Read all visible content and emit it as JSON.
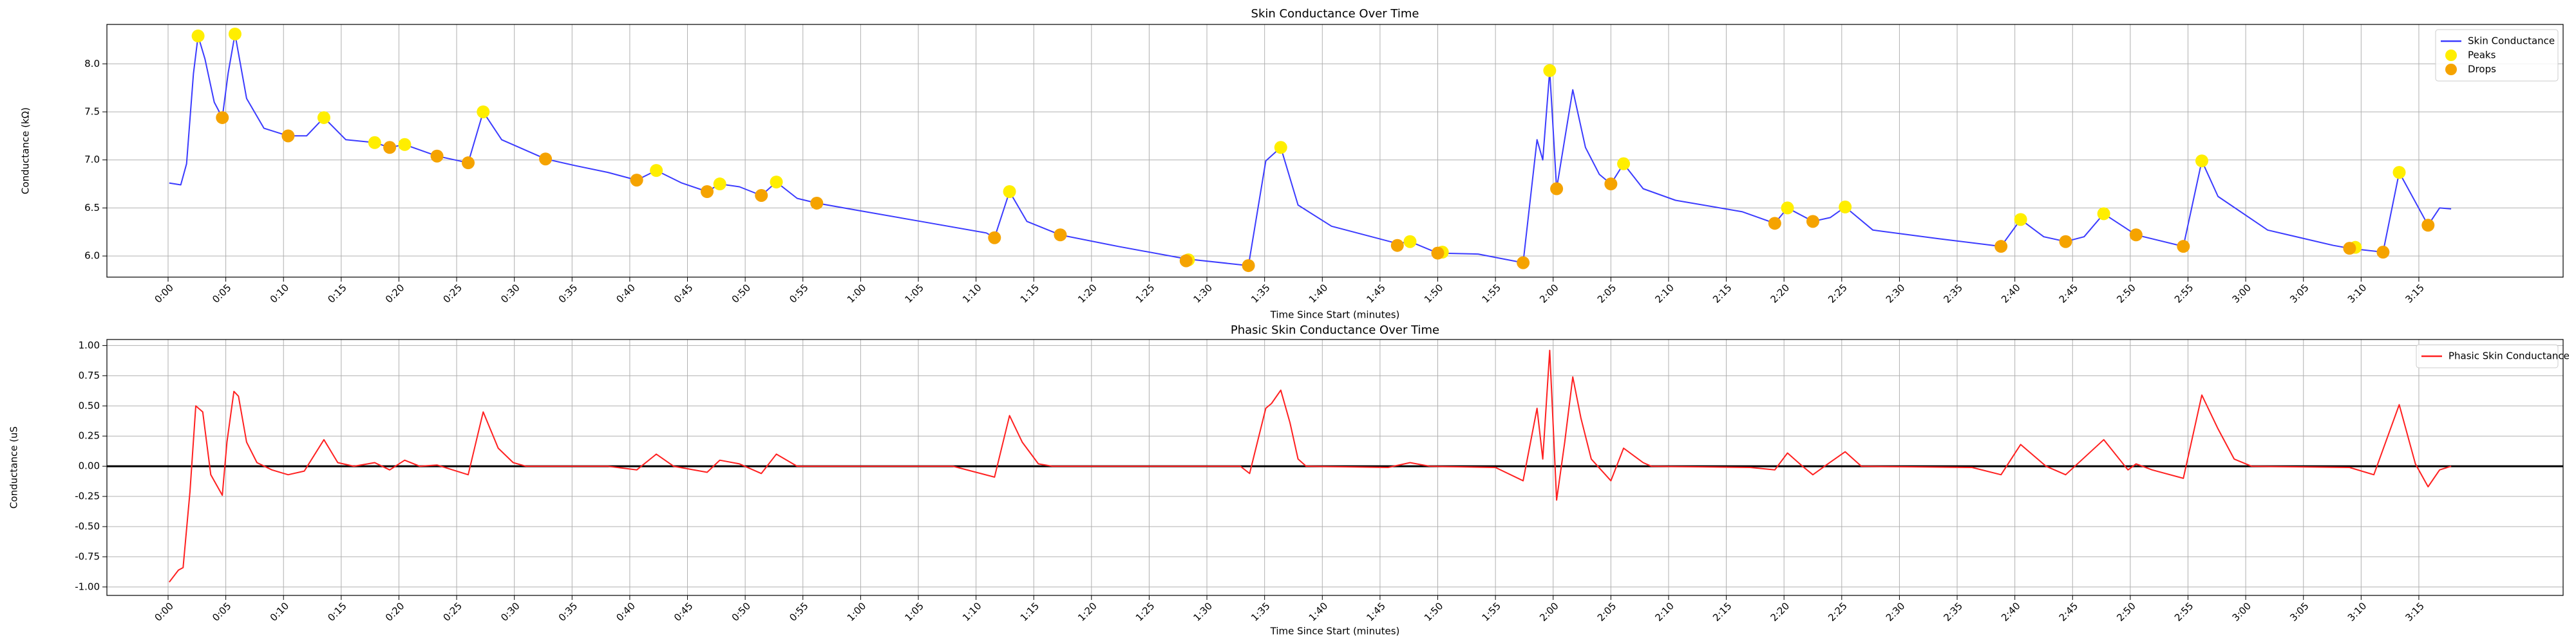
{
  "chart_data": [
    {
      "type": "line",
      "title": "Skin Conductance Over Time",
      "xlabel": "Time Since Start (minutes)",
      "ylabel": "Conductance (kΩ)",
      "xlim": [
        -5.3,
        207.5
      ],
      "ylim": [
        5.78,
        8.41
      ],
      "grid": true,
      "legend": "upper right",
      "xticks": [
        {
          "value": 0,
          "label": "0:00"
        },
        {
          "value": 5,
          "label": "0:05"
        },
        {
          "value": 10,
          "label": "0:10"
        },
        {
          "value": 15,
          "label": "0:15"
        },
        {
          "value": 20,
          "label": "0:20"
        },
        {
          "value": 25,
          "label": "0:25"
        },
        {
          "value": 30,
          "label": "0:30"
        },
        {
          "value": 35,
          "label": "0:35"
        },
        {
          "value": 40,
          "label": "0:40"
        },
        {
          "value": 45,
          "label": "0:45"
        },
        {
          "value": 50,
          "label": "0:50"
        },
        {
          "value": 55,
          "label": "0:55"
        },
        {
          "value": 60,
          "label": "1:00"
        },
        {
          "value": 65,
          "label": "1:05"
        },
        {
          "value": 70,
          "label": "1:10"
        },
        {
          "value": 75,
          "label": "1:15"
        },
        {
          "value": 80,
          "label": "1:20"
        },
        {
          "value": 85,
          "label": "1:25"
        },
        {
          "value": 90,
          "label": "1:30"
        },
        {
          "value": 95,
          "label": "1:35"
        },
        {
          "value": 100,
          "label": "1:40"
        },
        {
          "value": 105,
          "label": "1:45"
        },
        {
          "value": 110,
          "label": "1:50"
        },
        {
          "value": 115,
          "label": "1:55"
        },
        {
          "value": 120,
          "label": "2:00"
        },
        {
          "value": 125,
          "label": "2:05"
        },
        {
          "value": 130,
          "label": "2:10"
        },
        {
          "value": 135,
          "label": "2:15"
        },
        {
          "value": 140,
          "label": "2:20"
        },
        {
          "value": 145,
          "label": "2:25"
        },
        {
          "value": 150,
          "label": "2:30"
        },
        {
          "value": 155,
          "label": "2:35"
        },
        {
          "value": 160,
          "label": "2:40"
        },
        {
          "value": 165,
          "label": "2:45"
        },
        {
          "value": 170,
          "label": "2:50"
        },
        {
          "value": 175,
          "label": "2:55"
        },
        {
          "value": 180,
          "label": "3:00"
        },
        {
          "value": 185,
          "label": "3:05"
        },
        {
          "value": 190,
          "label": "3:10"
        },
        {
          "value": 195,
          "label": "3:15"
        }
      ],
      "yticks": [
        {
          "value": 6,
          "label": "6.0"
        },
        {
          "value": 6.5,
          "label": "6.5"
        },
        {
          "value": 7,
          "label": "7.0"
        },
        {
          "value": 7.5,
          "label": "7.5"
        },
        {
          "value": 8,
          "label": "8.0"
        }
      ],
      "series": [
        {
          "name": "Skin Conductance",
          "type": "line",
          "color": "#3b3bff",
          "x": [
            0.1,
            1.1,
            1.6,
            2.2,
            2.6,
            3.2,
            4.0,
            4.7,
            5.2,
            5.8,
            6.8,
            8.3,
            10.4,
            12.0,
            13.5,
            15.4,
            17.9,
            19.2,
            20.5,
            23.3,
            26.0,
            27.3,
            28.9,
            32.7,
            35.3,
            38.1,
            40.6,
            42.3,
            44.5,
            46.7,
            47.8,
            49.5,
            51.4,
            52.7,
            54.5,
            56.2,
            59.5,
            65.2,
            70.9,
            71.6,
            72.9,
            74.4,
            77.3,
            82.3,
            88.2,
            93.6,
            95.1,
            96.4,
            97.9,
            100.8,
            106.5,
            107.6,
            110.0,
            113.5,
            117.4,
            118.6,
            119.1,
            119.7,
            120.3,
            121.7,
            122.8,
            124.0,
            125.0,
            126.1,
            127.8,
            130.6,
            136.4,
            139.2,
            140.3,
            142.5,
            144.0,
            145.3,
            147.7,
            153.4,
            158.8,
            160.5,
            162.5,
            164.4,
            166.0,
            167.7,
            170.5,
            174.6,
            176.2,
            177.6,
            181.9,
            187.6,
            189.0,
            191.9,
            193.3,
            195.8,
            196.8,
            197.8
          ],
          "values": [
            6.76,
            6.74,
            6.96,
            7.9,
            8.29,
            8.05,
            7.6,
            7.44,
            7.9,
            8.31,
            7.64,
            7.33,
            7.25,
            7.25,
            7.44,
            7.21,
            7.18,
            7.13,
            7.16,
            7.04,
            6.97,
            7.5,
            7.21,
            7.01,
            6.94,
            6.87,
            6.79,
            6.89,
            6.76,
            6.67,
            6.75,
            6.72,
            6.63,
            6.77,
            6.6,
            6.55,
            6.48,
            6.36,
            6.24,
            6.19,
            6.67,
            6.36,
            6.22,
            6.1,
            5.97,
            5.9,
            6.99,
            7.13,
            6.53,
            6.31,
            6.13,
            6.15,
            6.03,
            6.02,
            5.93,
            7.21,
            7.0,
            7.93,
            6.7,
            7.73,
            7.13,
            6.85,
            6.75,
            6.96,
            6.7,
            6.58,
            6.46,
            6.34,
            6.5,
            6.36,
            6.4,
            6.51,
            6.27,
            6.18,
            6.1,
            6.38,
            6.2,
            6.15,
            6.2,
            6.44,
            6.22,
            6.1,
            6.99,
            6.62,
            6.27,
            6.11,
            6.08,
            6.04,
            6.87,
            6.32,
            6.5,
            6.49
          ]
        },
        {
          "name": "Peaks",
          "type": "scatter",
          "color": "#ffee00",
          "x": [
            2.6,
            5.8,
            13.5,
            17.9,
            20.5,
            27.3,
            42.3,
            47.8,
            52.7,
            72.9,
            88.4,
            96.4,
            107.6,
            110.4,
            119.7,
            126.1,
            140.3,
            145.3,
            160.5,
            167.7,
            176.2,
            189.5,
            193.3
          ],
          "values": [
            8.29,
            8.31,
            7.44,
            7.18,
            7.16,
            7.5,
            6.89,
            6.75,
            6.77,
            6.67,
            5.96,
            7.13,
            6.15,
            6.04,
            7.93,
            6.96,
            6.5,
            6.51,
            6.38,
            6.44,
            6.99,
            6.09,
            6.87
          ]
        },
        {
          "name": "Drops",
          "type": "scatter",
          "color": "#f5a300",
          "x": [
            4.7,
            10.4,
            19.2,
            23.3,
            26.0,
            32.7,
            40.6,
            46.7,
            51.4,
            56.2,
            71.6,
            77.3,
            88.2,
            93.6,
            106.5,
            110.0,
            117.4,
            120.3,
            125.0,
            139.2,
            142.5,
            158.8,
            164.4,
            170.5,
            174.6,
            189.0,
            191.9,
            195.8
          ],
          "values": [
            7.44,
            7.25,
            7.13,
            7.04,
            6.97,
            7.01,
            6.79,
            6.67,
            6.63,
            6.55,
            6.19,
            6.22,
            5.95,
            5.9,
            6.11,
            6.03,
            5.93,
            6.7,
            6.75,
            6.34,
            6.36,
            6.1,
            6.15,
            6.22,
            6.1,
            6.08,
            6.04,
            6.32
          ]
        }
      ]
    },
    {
      "type": "line",
      "title": "Phasic Skin Conductance Over Time",
      "xlabel": "Time Since Start (minutes)",
      "ylabel": "Conductance (uS",
      "xlim": [
        -5.3,
        207.5
      ],
      "ylim": [
        -1.07,
        1.05
      ],
      "grid": true,
      "legend": "upper right",
      "reference_line": {
        "value": 0,
        "color": "#000000"
      },
      "xticks": [
        {
          "value": 0,
          "label": "0:00"
        },
        {
          "value": 5,
          "label": "0:05"
        },
        {
          "value": 10,
          "label": "0:10"
        },
        {
          "value": 15,
          "label": "0:15"
        },
        {
          "value": 20,
          "label": "0:20"
        },
        {
          "value": 25,
          "label": "0:25"
        },
        {
          "value": 30,
          "label": "0:30"
        },
        {
          "value": 35,
          "label": "0:35"
        },
        {
          "value": 40,
          "label": "0:40"
        },
        {
          "value": 45,
          "label": "0:45"
        },
        {
          "value": 50,
          "label": "0:50"
        },
        {
          "value": 55,
          "label": "0:55"
        },
        {
          "value": 60,
          "label": "1:00"
        },
        {
          "value": 65,
          "label": "1:05"
        },
        {
          "value": 70,
          "label": "1:10"
        },
        {
          "value": 75,
          "label": "1:15"
        },
        {
          "value": 80,
          "label": "1:20"
        },
        {
          "value": 85,
          "label": "1:25"
        },
        {
          "value": 90,
          "label": "1:30"
        },
        {
          "value": 95,
          "label": "1:35"
        },
        {
          "value": 100,
          "label": "1:40"
        },
        {
          "value": 105,
          "label": "1:45"
        },
        {
          "value": 110,
          "label": "1:50"
        },
        {
          "value": 115,
          "label": "1:55"
        },
        {
          "value": 120,
          "label": "2:00"
        },
        {
          "value": 125,
          "label": "2:05"
        },
        {
          "value": 130,
          "label": "2:10"
        },
        {
          "value": 135,
          "label": "2:15"
        },
        {
          "value": 140,
          "label": "2:20"
        },
        {
          "value": 145,
          "label": "2:25"
        },
        {
          "value": 150,
          "label": "2:30"
        },
        {
          "value": 155,
          "label": "2:35"
        },
        {
          "value": 160,
          "label": "2:40"
        },
        {
          "value": 165,
          "label": "2:45"
        },
        {
          "value": 170,
          "label": "2:50"
        },
        {
          "value": 175,
          "label": "2:55"
        },
        {
          "value": 180,
          "label": "3:00"
        },
        {
          "value": 185,
          "label": "3:05"
        },
        {
          "value": 190,
          "label": "3:10"
        },
        {
          "value": 195,
          "label": "3:15"
        }
      ],
      "yticks": [
        {
          "value": -1,
          "label": "-1.00"
        },
        {
          "value": -0.75,
          "label": "-0.75"
        },
        {
          "value": -0.5,
          "label": "-0.50"
        },
        {
          "value": -0.25,
          "label": "-0.25"
        },
        {
          "value": 0,
          "label": "0.00"
        },
        {
          "value": 0.25,
          "label": "0.25"
        },
        {
          "value": 0.5,
          "label": "0.50"
        },
        {
          "value": 0.75,
          "label": "0.75"
        },
        {
          "value": 1,
          "label": "1.00"
        }
      ],
      "series": [
        {
          "name": "Phasic Skin Conductance",
          "type": "line",
          "color": "#ff2020",
          "x": [
            0.1,
            0.9,
            1.3,
            1.9,
            2.4,
            3.0,
            3.7,
            4.7,
            5.1,
            5.7,
            6.1,
            6.8,
            7.7,
            9.0,
            10.4,
            11.8,
            13.5,
            14.7,
            16.1,
            17.9,
            19.2,
            20.5,
            21.8,
            23.3,
            26.0,
            27.3,
            28.6,
            29.9,
            31.0,
            38.1,
            40.6,
            42.3,
            43.8,
            46.7,
            47.8,
            49.5,
            51.4,
            52.7,
            54.5,
            68.0,
            71.6,
            72.9,
            74.0,
            75.4,
            76.6,
            92.9,
            93.7,
            95.1,
            95.6,
            96.4,
            97.2,
            97.9,
            98.6,
            105.7,
            107.6,
            109.3,
            115.0,
            117.4,
            118.6,
            119.1,
            119.7,
            120.3,
            121.0,
            121.7,
            122.4,
            123.3,
            125.0,
            126.1,
            127.8,
            128.5,
            137.1,
            139.2,
            140.3,
            141.6,
            142.5,
            143.8,
            145.3,
            146.7,
            156.3,
            158.8,
            160.5,
            162.7,
            164.4,
            167.7,
            169.8,
            170.5,
            171.9,
            174.6,
            176.2,
            177.6,
            179.0,
            180.5,
            189.0,
            191.1,
            193.3,
            194.7,
            195.8,
            196.8,
            197.8
          ],
          "values": [
            -0.96,
            -0.86,
            -0.84,
            -0.21,
            0.5,
            0.45,
            -0.07,
            -0.24,
            0.2,
            0.62,
            0.58,
            0.2,
            0.03,
            -0.03,
            -0.07,
            -0.04,
            0.22,
            0.03,
            0,
            0.03,
            -0.03,
            0.05,
            0,
            0.01,
            -0.07,
            0.45,
            0.15,
            0.03,
            0,
            0,
            -0.03,
            0.1,
            0,
            -0.05,
            0.05,
            0.02,
            -0.06,
            0.1,
            0,
            0,
            -0.09,
            0.42,
            0.2,
            0.02,
            0,
            0,
            -0.06,
            0.48,
            0.52,
            0.63,
            0.36,
            0.06,
            0,
            -0.01,
            0.03,
            0,
            -0.01,
            -0.12,
            0.48,
            0.06,
            0.96,
            -0.28,
            0.2,
            0.74,
            0.4,
            0.06,
            -0.12,
            0.15,
            0.03,
            0,
            -0.01,
            -0.03,
            0.11,
            0,
            -0.07,
            0.02,
            0.12,
            0,
            -0.01,
            -0.07,
            0.18,
            0,
            -0.07,
            0.22,
            -0.03,
            0.02,
            -0.03,
            -0.1,
            0.59,
            0.31,
            0.06,
            0,
            -0.01,
            -0.07,
            0.51,
            0.02,
            -0.17,
            -0.03,
            0
          ]
        }
      ]
    }
  ]
}
